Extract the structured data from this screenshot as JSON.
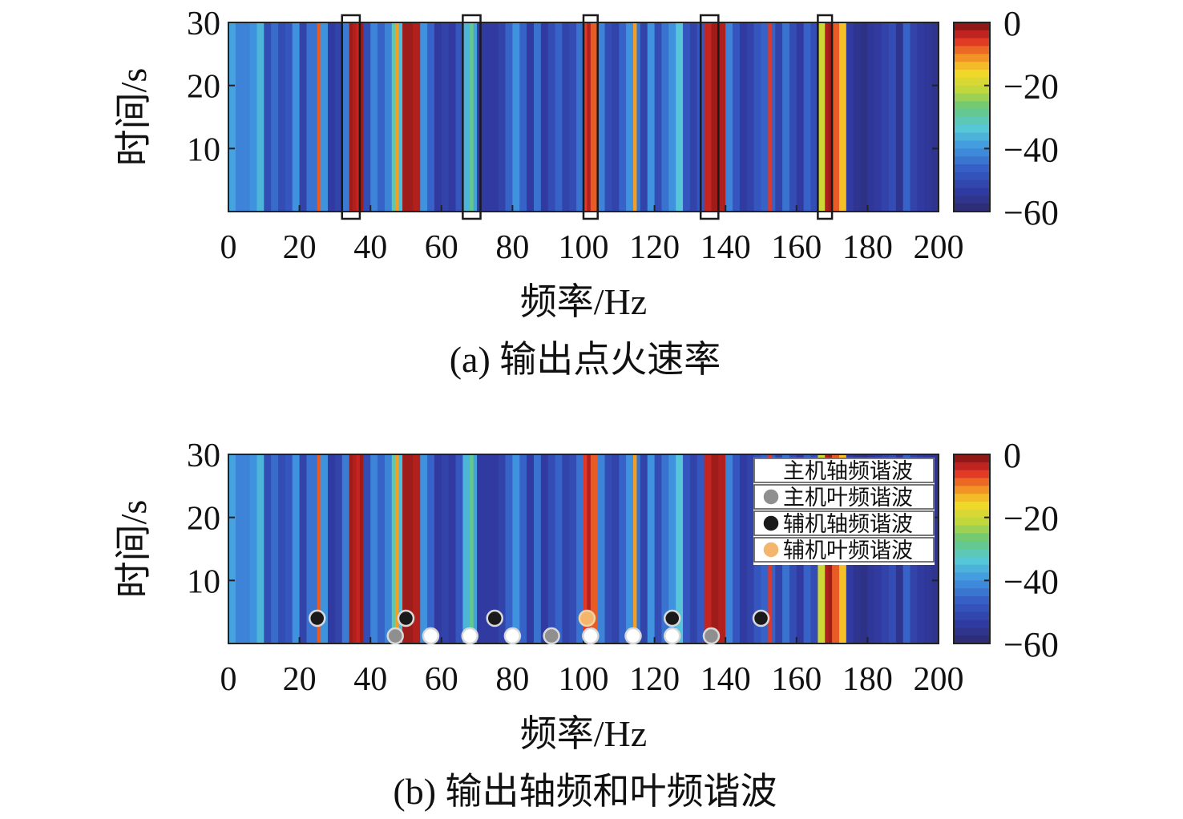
{
  "chart_data": [
    {
      "type": "heatmap",
      "caption": "(a) 输出点火速率",
      "xlabel": "频率/Hz",
      "ylabel": "时间/s",
      "xlim": [
        0,
        200
      ],
      "ylim": [
        0,
        30
      ],
      "x_ticks": [
        "0",
        "20",
        "40",
        "60",
        "80",
        "100",
        "120",
        "140",
        "160",
        "180",
        "200"
      ],
      "y_ticks": [
        "10",
        "20",
        "30"
      ],
      "colorbar": {
        "range": [
          -60,
          0
        ],
        "ticks": [
          "0",
          "−20",
          "−40",
          "−60"
        ]
      },
      "bands_value_by_frequency_hz": [
        [
          0,
          -38
        ],
        [
          2,
          -42
        ],
        [
          4,
          -42
        ],
        [
          6,
          -40
        ],
        [
          8,
          -36
        ],
        [
          10,
          -50
        ],
        [
          12,
          -45
        ],
        [
          14,
          -50
        ],
        [
          16,
          -48
        ],
        [
          18,
          -40
        ],
        [
          20,
          -52
        ],
        [
          22,
          -44
        ],
        [
          24,
          -44
        ],
        [
          25,
          -8
        ],
        [
          26,
          -40
        ],
        [
          28,
          -54
        ],
        [
          30,
          -52
        ],
        [
          32,
          -43
        ],
        [
          34,
          -2
        ],
        [
          35,
          -3
        ],
        [
          36,
          -4
        ],
        [
          37,
          -2
        ],
        [
          38,
          -50
        ],
        [
          40,
          -42
        ],
        [
          42,
          -46
        ],
        [
          44,
          -42
        ],
        [
          46,
          -30
        ],
        [
          47,
          -12
        ],
        [
          48,
          -35
        ],
        [
          49,
          -2
        ],
        [
          50,
          -2
        ],
        [
          51,
          -2
        ],
        [
          52,
          -3
        ],
        [
          53,
          -3
        ],
        [
          54,
          -40
        ],
        [
          56,
          -46
        ],
        [
          58,
          -54
        ],
        [
          60,
          -52
        ],
        [
          62,
          -54
        ],
        [
          64,
          -48
        ],
        [
          66,
          -36
        ],
        [
          68,
          -28
        ],
        [
          69,
          -38
        ],
        [
          70,
          -54
        ],
        [
          72,
          -54
        ],
        [
          74,
          -54
        ],
        [
          76,
          -52
        ],
        [
          78,
          -46
        ],
        [
          80,
          -40
        ],
        [
          82,
          -46
        ],
        [
          84,
          -54
        ],
        [
          86,
          -44
        ],
        [
          88,
          -54
        ],
        [
          90,
          -50
        ],
        [
          92,
          -46
        ],
        [
          94,
          -52
        ],
        [
          96,
          -50
        ],
        [
          98,
          -44
        ],
        [
          100,
          -6
        ],
        [
          101,
          -3
        ],
        [
          102,
          -8
        ],
        [
          104,
          -42
        ],
        [
          106,
          -50
        ],
        [
          108,
          -52
        ],
        [
          110,
          -46
        ],
        [
          112,
          -40
        ],
        [
          114,
          -12
        ],
        [
          115,
          -44
        ],
        [
          116,
          -52
        ],
        [
          118,
          -40
        ],
        [
          120,
          -50
        ],
        [
          122,
          -44
        ],
        [
          124,
          -40
        ],
        [
          126,
          -34
        ],
        [
          128,
          -48
        ],
        [
          130,
          -52
        ],
        [
          132,
          -48
        ],
        [
          134,
          -4
        ],
        [
          136,
          -2
        ],
        [
          137,
          -2
        ],
        [
          138,
          -3
        ],
        [
          140,
          -42
        ],
        [
          142,
          -48
        ],
        [
          144,
          -54
        ],
        [
          146,
          -52
        ],
        [
          148,
          -48
        ],
        [
          150,
          -46
        ],
        [
          152,
          -6
        ],
        [
          153,
          -46
        ],
        [
          154,
          -52
        ],
        [
          156,
          -44
        ],
        [
          158,
          -50
        ],
        [
          160,
          -54
        ],
        [
          162,
          -46
        ],
        [
          164,
          -50
        ],
        [
          166,
          -20
        ],
        [
          168,
          -3
        ],
        [
          169,
          -2
        ],
        [
          170,
          -8
        ],
        [
          172,
          -14
        ],
        [
          174,
          -54
        ],
        [
          176,
          -56
        ],
        [
          178,
          -57
        ],
        [
          180,
          -55
        ],
        [
          182,
          -54
        ],
        [
          184,
          -52
        ],
        [
          186,
          -50
        ],
        [
          188,
          -56
        ],
        [
          190,
          -46
        ],
        [
          192,
          -52
        ],
        [
          194,
          -54
        ],
        [
          196,
          -55
        ],
        [
          198,
          -56
        ]
      ],
      "highlight_boxes_hz": [
        [
          32,
          37
        ],
        [
          66,
          71
        ],
        [
          100,
          104
        ],
        [
          133,
          138
        ],
        [
          166,
          170
        ]
      ]
    },
    {
      "type": "heatmap",
      "caption": "(b) 输出轴频和叶频谐波",
      "xlabel": "频率/Hz",
      "ylabel": "时间/s",
      "xlim": [
        0,
        200
      ],
      "ylim": [
        0,
        30
      ],
      "x_ticks": [
        "0",
        "20",
        "40",
        "60",
        "80",
        "100",
        "120",
        "140",
        "160",
        "180",
        "200"
      ],
      "y_ticks": [
        "10",
        "20",
        "30"
      ],
      "colorbar": {
        "range": [
          -60,
          0
        ],
        "ticks": [
          "0",
          "−20",
          "−40",
          "−60"
        ]
      },
      "same_field_as_panel_a": true,
      "legend": [
        {
          "label": "主机轴频谐波",
          "color": "#ffffff"
        },
        {
          "label": "主机叶频谐波",
          "color": "#8f8f8f"
        },
        {
          "label": "辅机轴频谐波",
          "color": "#1a1a1a"
        },
        {
          "label": "辅机叶频谐波",
          "color": "#f4b66c"
        }
      ],
      "markers": [
        {
          "series": "辅机轴频谐波",
          "x": 25,
          "y": 4
        },
        {
          "series": "辅机轴频谐波",
          "x": 50,
          "y": 4
        },
        {
          "series": "辅机轴频谐波",
          "x": 75,
          "y": 4
        },
        {
          "series": "辅机轴频谐波",
          "x": 125,
          "y": 4
        },
        {
          "series": "辅机轴频谐波",
          "x": 150,
          "y": 4
        },
        {
          "series": "辅机叶频谐波",
          "x": 101,
          "y": 4
        },
        {
          "series": "主机叶频谐波",
          "x": 47,
          "y": 1.2
        },
        {
          "series": "主机叶频谐波",
          "x": 91,
          "y": 1.2
        },
        {
          "series": "主机叶频谐波",
          "x": 136,
          "y": 1.2
        },
        {
          "series": "主机轴频谐波",
          "x": 57,
          "y": 1.2
        },
        {
          "series": "主机轴频谐波",
          "x": 68,
          "y": 1.2
        },
        {
          "series": "主机轴频谐波",
          "x": 80,
          "y": 1.2
        },
        {
          "series": "主机轴频谐波",
          "x": 102,
          "y": 1.2
        },
        {
          "series": "主机轴频谐波",
          "x": 114,
          "y": 1.2
        },
        {
          "series": "主机轴频谐波",
          "x": 125,
          "y": 1.2
        }
      ]
    }
  ]
}
